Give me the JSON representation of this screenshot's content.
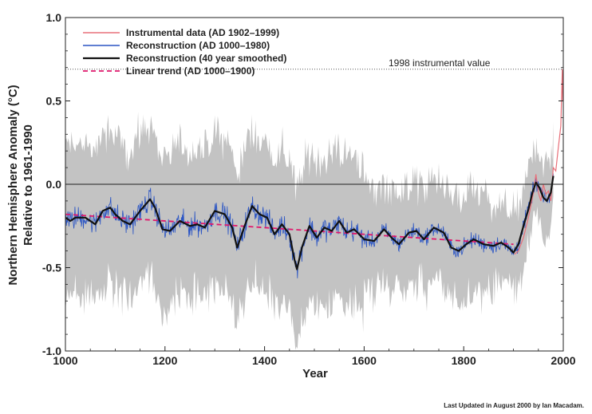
{
  "chart_data": {
    "type": "line",
    "xlabel": "Year",
    "ylabel_line1": "Northern Hemisphere Anomaly (°C)",
    "ylabel_line2": "Relative to 1961-1990",
    "xlim": [
      1000,
      2000
    ],
    "ylim": [
      -1.0,
      1.0
    ],
    "x_ticks": [
      1000,
      1200,
      1400,
      1600,
      1800,
      2000
    ],
    "x_tick_labels": [
      "1000",
      "1200",
      "1400",
      "1600",
      "1800",
      "2000"
    ],
    "y_ticks": [
      -1.0,
      -0.5,
      0.0,
      0.5,
      1.0
    ],
    "y_tick_labels": [
      "-1.0",
      "-0.5",
      "0.0",
      "0.5",
      "1.0"
    ],
    "zero_line": 0.0,
    "legend": [
      {
        "label": "Instrumental data (AD 1902–1999)",
        "color": "#e8707a",
        "style": "solid"
      },
      {
        "label": "Reconstruction (AD 1000–1980)",
        "color": "#2b55c4",
        "style": "solid"
      },
      {
        "label": "Reconstruction (40 year smoothed)",
        "color": "#111111",
        "style": "solid-thick"
      },
      {
        "label": "Linear trend (AD 1000–1900)",
        "color": "#e0186c",
        "style": "dashed"
      }
    ],
    "annotation": {
      "text": "1998 instrumental value",
      "y": 0.69
    },
    "smoothed": {
      "x": [
        1000,
        1010,
        1020,
        1040,
        1060,
        1075,
        1090,
        1100,
        1115,
        1130,
        1150,
        1170,
        1180,
        1195,
        1210,
        1230,
        1250,
        1265,
        1280,
        1300,
        1320,
        1335,
        1345,
        1360,
        1375,
        1390,
        1405,
        1420,
        1435,
        1450,
        1460,
        1465,
        1475,
        1490,
        1505,
        1520,
        1535,
        1550,
        1565,
        1580,
        1600,
        1620,
        1640,
        1655,
        1670,
        1690,
        1705,
        1720,
        1740,
        1760,
        1775,
        1790,
        1805,
        1820,
        1840,
        1860,
        1875,
        1890,
        1900,
        1910,
        1920,
        1930,
        1938,
        1945,
        1952,
        1960,
        1967,
        1975,
        1980
      ],
      "y": [
        -0.2,
        -0.22,
        -0.2,
        -0.2,
        -0.24,
        -0.16,
        -0.14,
        -0.18,
        -0.22,
        -0.24,
        -0.16,
        -0.09,
        -0.14,
        -0.27,
        -0.28,
        -0.22,
        -0.25,
        -0.24,
        -0.26,
        -0.16,
        -0.18,
        -0.26,
        -0.38,
        -0.25,
        -0.13,
        -0.18,
        -0.2,
        -0.3,
        -0.24,
        -0.3,
        -0.45,
        -0.51,
        -0.38,
        -0.25,
        -0.32,
        -0.26,
        -0.28,
        -0.22,
        -0.29,
        -0.27,
        -0.33,
        -0.34,
        -0.27,
        -0.32,
        -0.36,
        -0.29,
        -0.28,
        -0.33,
        -0.26,
        -0.29,
        -0.38,
        -0.4,
        -0.36,
        -0.33,
        -0.36,
        -0.37,
        -0.35,
        -0.38,
        -0.41,
        -0.36,
        -0.25,
        -0.15,
        -0.05,
        0.01,
        -0.02,
        -0.08,
        -0.1,
        -0.05,
        0.05
      ]
    },
    "reconstruction_range": [
      1000,
      1980
    ],
    "instrumental": {
      "x": [
        1902,
        1910,
        1920,
        1930,
        1940,
        1945,
        1950,
        1955,
        1960,
        1965,
        1970,
        1975,
        1980,
        1985,
        1990,
        1995,
        1998,
        1999
      ],
      "y": [
        -0.42,
        -0.4,
        -0.32,
        -0.2,
        -0.05,
        0.06,
        -0.05,
        -0.1,
        0.0,
        -0.06,
        -0.04,
        -0.1,
        0.1,
        0.08,
        0.22,
        0.35,
        0.69,
        0.5
      ]
    },
    "trend": {
      "x": [
        1000,
        1900
      ],
      "y": [
        -0.18,
        -0.36
      ]
    }
  },
  "footer": "Last Updated in August 2000 by Ian Macadam."
}
